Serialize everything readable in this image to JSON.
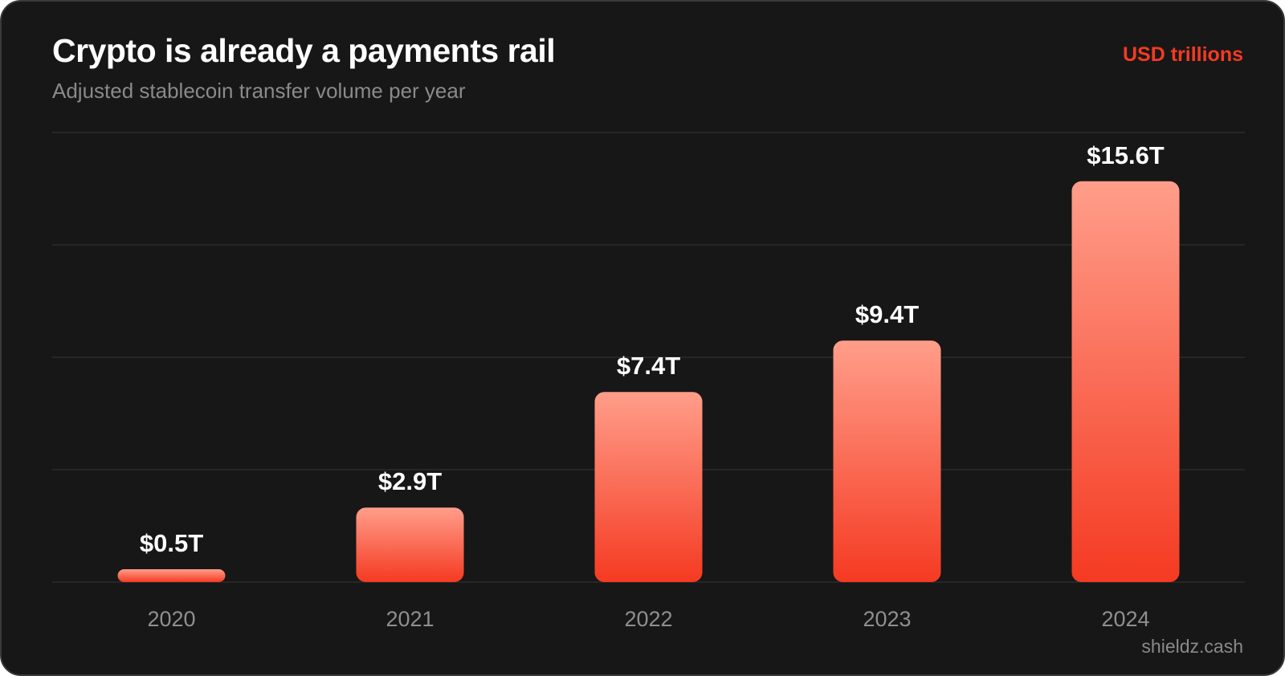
{
  "header": {
    "title": "Crypto is already a payments rail",
    "subtitle": "Adjusted stablecoin transfer volume per year",
    "unit": "USD trillions"
  },
  "footer": {
    "watermark": "shieldz.cash"
  },
  "colors": {
    "background": "#171717",
    "bar_top": "#ff9e8a",
    "bar_bottom": "#f53a22",
    "accent": "#f53a22",
    "grid": "#2b2b2b"
  },
  "chart_data": {
    "type": "bar",
    "categories": [
      "2020",
      "2021",
      "2022",
      "2023",
      "2024"
    ],
    "values": [
      0.5,
      2.9,
      7.4,
      9.4,
      15.6
    ],
    "data_labels": [
      "$0.5T",
      "$2.9T",
      "$7.4T",
      "$9.4T",
      "$15.6T"
    ],
    "title": "Crypto is already a payments rail",
    "subtitle": "Adjusted stablecoin transfer volume per year",
    "ylabel": "USD trillions",
    "ylim": [
      0,
      17.5
    ],
    "grid": true,
    "y_axis_labels_shown": false
  }
}
